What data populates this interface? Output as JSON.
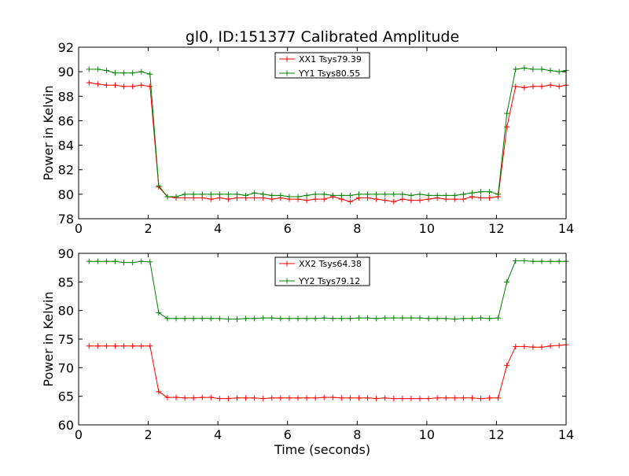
{
  "title": "gl0, ID:151377 Calibrated Amplitude",
  "colors": {
    "xx": "#ff0000",
    "yy": "#008000",
    "axes": "#000000",
    "background": "#ffffff"
  },
  "chart_data": [
    {
      "type": "line",
      "title": "gl0, ID:151377 Calibrated Amplitude",
      "xlabel": "",
      "ylabel": "Power in Kelvin",
      "xlim": [
        0,
        14
      ],
      "ylim": [
        78,
        92
      ],
      "xticks": [
        0,
        2,
        4,
        6,
        8,
        10,
        12,
        14
      ],
      "yticks": [
        78,
        80,
        82,
        84,
        86,
        88,
        90,
        92
      ],
      "legend_position": "top-center",
      "grid": false,
      "x": [
        0.3,
        0.55,
        0.8,
        1.05,
        1.3,
        1.55,
        1.8,
        2.05,
        2.3,
        2.55,
        2.8,
        3.05,
        3.3,
        3.55,
        3.8,
        4.05,
        4.3,
        4.55,
        4.8,
        5.05,
        5.3,
        5.55,
        5.8,
        6.05,
        6.3,
        6.55,
        6.8,
        7.05,
        7.3,
        7.55,
        7.8,
        8.05,
        8.3,
        8.55,
        8.8,
        9.05,
        9.3,
        9.55,
        9.8,
        10.05,
        10.3,
        10.55,
        10.8,
        11.05,
        11.3,
        11.55,
        11.8,
        12.05,
        12.3,
        12.55,
        12.8,
        13.05,
        13.3,
        13.55,
        13.8,
        14.0
      ],
      "series": [
        {
          "name": "XX1 Tsys79.39",
          "color": "#ff0000",
          "values": [
            89.1,
            89.0,
            88.9,
            88.9,
            88.8,
            88.8,
            88.9,
            88.8,
            80.6,
            79.8,
            79.7,
            79.7,
            79.7,
            79.7,
            79.6,
            79.7,
            79.6,
            79.7,
            79.7,
            79.7,
            79.7,
            79.6,
            79.7,
            79.6,
            79.6,
            79.5,
            79.6,
            79.6,
            79.8,
            79.6,
            79.4,
            79.7,
            79.7,
            79.6,
            79.5,
            79.4,
            79.6,
            79.5,
            79.5,
            79.6,
            79.7,
            79.6,
            79.6,
            79.6,
            79.8,
            79.7,
            79.7,
            79.8,
            85.5,
            88.8,
            88.7,
            88.8,
            88.8,
            88.9,
            88.8,
            88.9
          ]
        },
        {
          "name": "YY1 Tsys80.55",
          "color": "#008000",
          "values": [
            90.2,
            90.2,
            90.1,
            89.9,
            89.9,
            89.9,
            90.0,
            89.8,
            80.7,
            79.8,
            79.8,
            80.0,
            80.0,
            80.0,
            80.0,
            80.0,
            80.0,
            80.0,
            79.9,
            80.1,
            80.0,
            79.9,
            79.9,
            79.8,
            79.8,
            79.9,
            80.0,
            80.0,
            79.9,
            79.9,
            79.9,
            80.0,
            80.0,
            80.0,
            80.0,
            80.0,
            80.0,
            79.9,
            80.0,
            79.9,
            79.9,
            79.9,
            79.9,
            80.0,
            80.1,
            80.2,
            80.2,
            80.0,
            86.6,
            90.2,
            90.3,
            90.2,
            90.2,
            90.1,
            90.0,
            90.1
          ]
        }
      ]
    },
    {
      "type": "line",
      "title": "",
      "xlabel": "Time (seconds)",
      "ylabel": "Power in Kelvin",
      "xlim": [
        0,
        14
      ],
      "ylim": [
        60,
        90
      ],
      "xticks": [
        0,
        2,
        4,
        6,
        8,
        10,
        12,
        14
      ],
      "yticks": [
        60,
        65,
        70,
        75,
        80,
        85,
        90
      ],
      "legend_position": "top-center",
      "grid": false,
      "x": [
        0.3,
        0.55,
        0.8,
        1.05,
        1.3,
        1.55,
        1.8,
        2.05,
        2.3,
        2.55,
        2.8,
        3.05,
        3.3,
        3.55,
        3.8,
        4.05,
        4.3,
        4.55,
        4.8,
        5.05,
        5.3,
        5.55,
        5.8,
        6.05,
        6.3,
        6.55,
        6.8,
        7.05,
        7.3,
        7.55,
        7.8,
        8.05,
        8.3,
        8.55,
        8.8,
        9.05,
        9.3,
        9.55,
        9.8,
        10.05,
        10.3,
        10.55,
        10.8,
        11.05,
        11.3,
        11.55,
        11.8,
        12.05,
        12.3,
        12.55,
        12.8,
        13.05,
        13.3,
        13.55,
        13.8,
        14.0
      ],
      "series": [
        {
          "name": "XX2 Tsys64.38",
          "color": "#ff0000",
          "values": [
            73.8,
            73.8,
            73.8,
            73.8,
            73.8,
            73.8,
            73.8,
            73.8,
            65.8,
            64.8,
            64.8,
            64.7,
            64.7,
            64.8,
            64.8,
            64.6,
            64.6,
            64.7,
            64.7,
            64.7,
            64.6,
            64.7,
            64.7,
            64.7,
            64.7,
            64.7,
            64.7,
            64.8,
            64.8,
            64.7,
            64.7,
            64.7,
            64.7,
            64.6,
            64.7,
            64.6,
            64.6,
            64.6,
            64.6,
            64.6,
            64.7,
            64.7,
            64.7,
            64.7,
            64.7,
            64.6,
            64.7,
            64.7,
            70.4,
            73.7,
            73.7,
            73.6,
            73.6,
            73.8,
            73.9,
            74.0
          ]
        },
        {
          "name": "YY2 Tsys79.12",
          "color": "#008000",
          "values": [
            88.6,
            88.6,
            88.6,
            88.6,
            88.4,
            88.4,
            88.6,
            88.5,
            79.6,
            78.6,
            78.6,
            78.6,
            78.6,
            78.6,
            78.6,
            78.6,
            78.5,
            78.5,
            78.6,
            78.6,
            78.7,
            78.7,
            78.6,
            78.6,
            78.6,
            78.6,
            78.6,
            78.7,
            78.6,
            78.6,
            78.6,
            78.7,
            78.7,
            78.6,
            78.7,
            78.7,
            78.7,
            78.7,
            78.7,
            78.6,
            78.6,
            78.6,
            78.5,
            78.6,
            78.6,
            78.7,
            78.6,
            78.7,
            85.0,
            88.7,
            88.7,
            88.6,
            88.6,
            88.6,
            88.6,
            88.6
          ]
        }
      ]
    }
  ]
}
